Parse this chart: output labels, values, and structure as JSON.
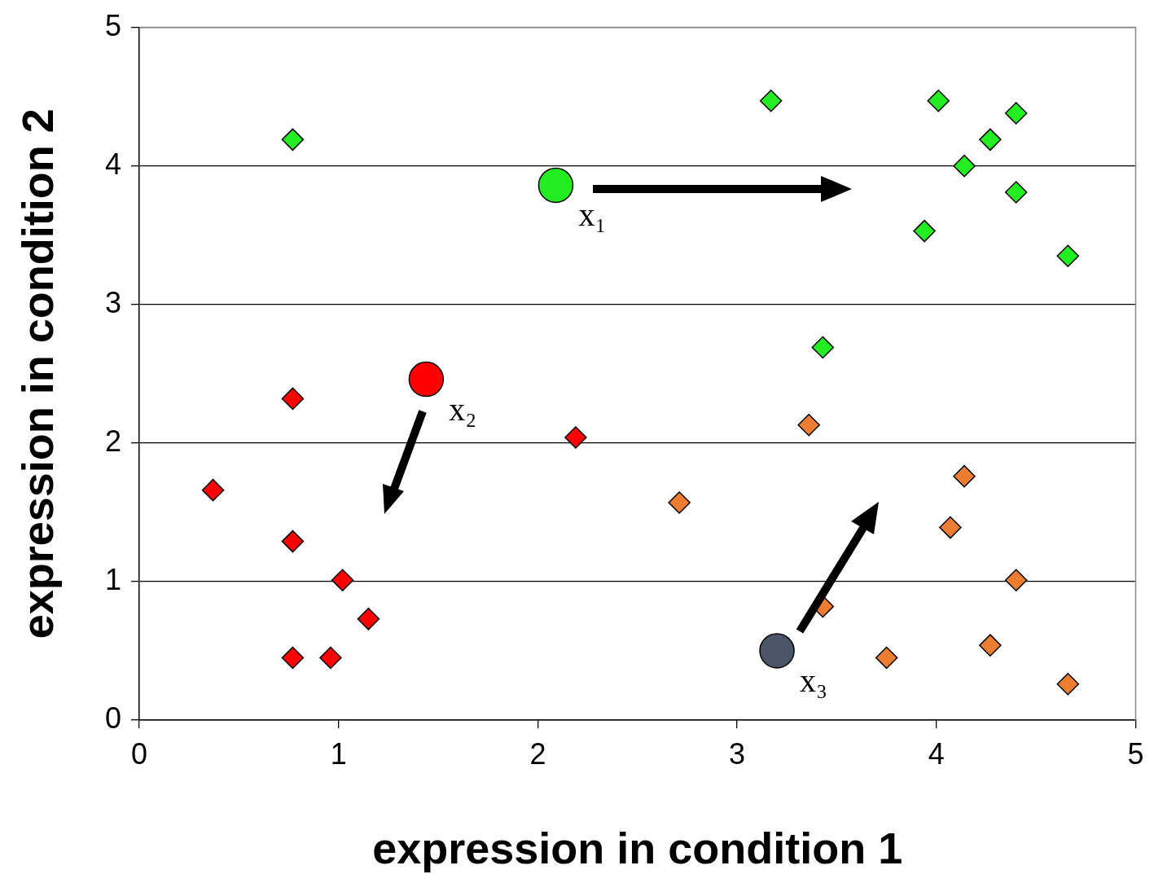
{
  "chart_data": {
    "type": "scatter",
    "xlabel": "expression in condition 1",
    "ylabel": "expression in condition 2",
    "xlim": [
      0,
      5
    ],
    "ylim": [
      0,
      5
    ],
    "xticks": [
      0,
      1,
      2,
      3,
      4,
      5
    ],
    "yticks": [
      0,
      1,
      2,
      3,
      4,
      5
    ],
    "grid": "y",
    "legend": false,
    "series": [
      {
        "color": "#22ee22",
        "marker": "diamond",
        "x": [
          0.77,
          3.17,
          4.01,
          4.4,
          4.27,
          4.14,
          4.4,
          3.94,
          4.66,
          3.43
        ],
        "values": [
          4.19,
          4.47,
          4.47,
          4.38,
          4.19,
          4.0,
          3.81,
          3.53,
          3.35,
          2.69
        ]
      },
      {
        "color": "#ff0000",
        "marker": "diamond",
        "x": [
          0.77,
          0.37,
          0.77,
          1.02,
          1.15,
          0.77,
          0.96,
          2.19
        ],
        "values": [
          2.32,
          1.66,
          1.29,
          1.01,
          0.73,
          0.45,
          0.45,
          2.04
        ]
      },
      {
        "color": "#ed7d31",
        "marker": "diamond",
        "x": [
          3.36,
          2.71,
          4.14,
          4.07,
          4.4,
          3.43,
          3.75,
          4.27,
          4.66
        ],
        "values": [
          2.13,
          1.57,
          1.76,
          1.39,
          1.01,
          0.82,
          0.45,
          0.54,
          0.26
        ]
      },
      {
        "color": "#22ee22",
        "marker": "circle",
        "x": [
          2.09
        ],
        "values": [
          3.86
        ]
      },
      {
        "color": "#ff0000",
        "marker": "circle",
        "x": [
          1.44
        ],
        "values": [
          2.46
        ]
      },
      {
        "color": "#4a5568",
        "marker": "circle",
        "x": [
          3.2
        ],
        "values": [
          0.5
        ]
      }
    ],
    "annotations": [
      {
        "text": "x₁",
        "x": 2.09,
        "y": 3.86
      },
      {
        "text": "x₂",
        "x": 1.44,
        "y": 2.46
      },
      {
        "text": "x₃",
        "x": 3.2,
        "y": 0.5
      }
    ]
  }
}
